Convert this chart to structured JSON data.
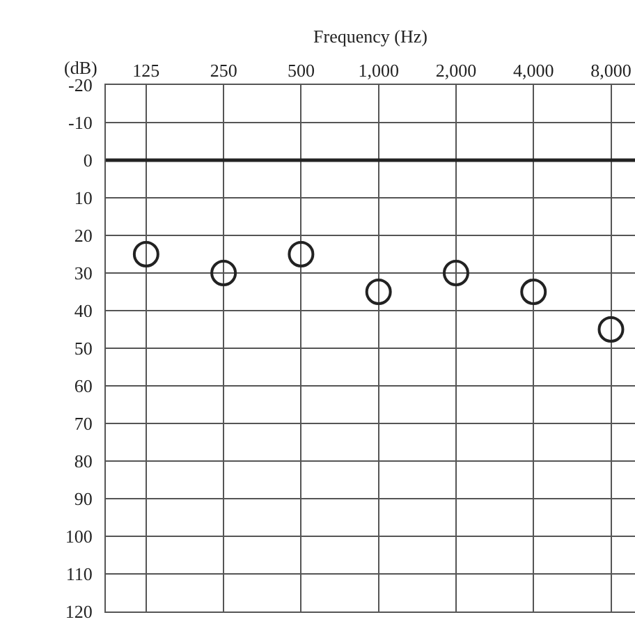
{
  "chart_data": {
    "type": "scatter",
    "xlabel": "Frequency (Hz)",
    "ylabel": "(dB)",
    "categories": [
      "125",
      "250",
      "500",
      "1,000",
      "2,000",
      "4,000",
      "8,000"
    ],
    "series": [
      {
        "color": "#222222",
        "values": [
          25,
          30,
          25,
          35,
          30,
          35,
          45
        ]
      }
    ],
    "ylim": [
      120,
      -20
    ],
    "yticks": [
      -20,
      -10,
      0,
      10,
      20,
      30,
      40,
      50,
      60,
      70,
      80,
      90,
      100,
      110,
      120
    ],
    "grid": true,
    "marker": "circle",
    "ref_lines": [
      {
        "axis": "y",
        "value": 0,
        "color": "#222222"
      }
    ]
  }
}
